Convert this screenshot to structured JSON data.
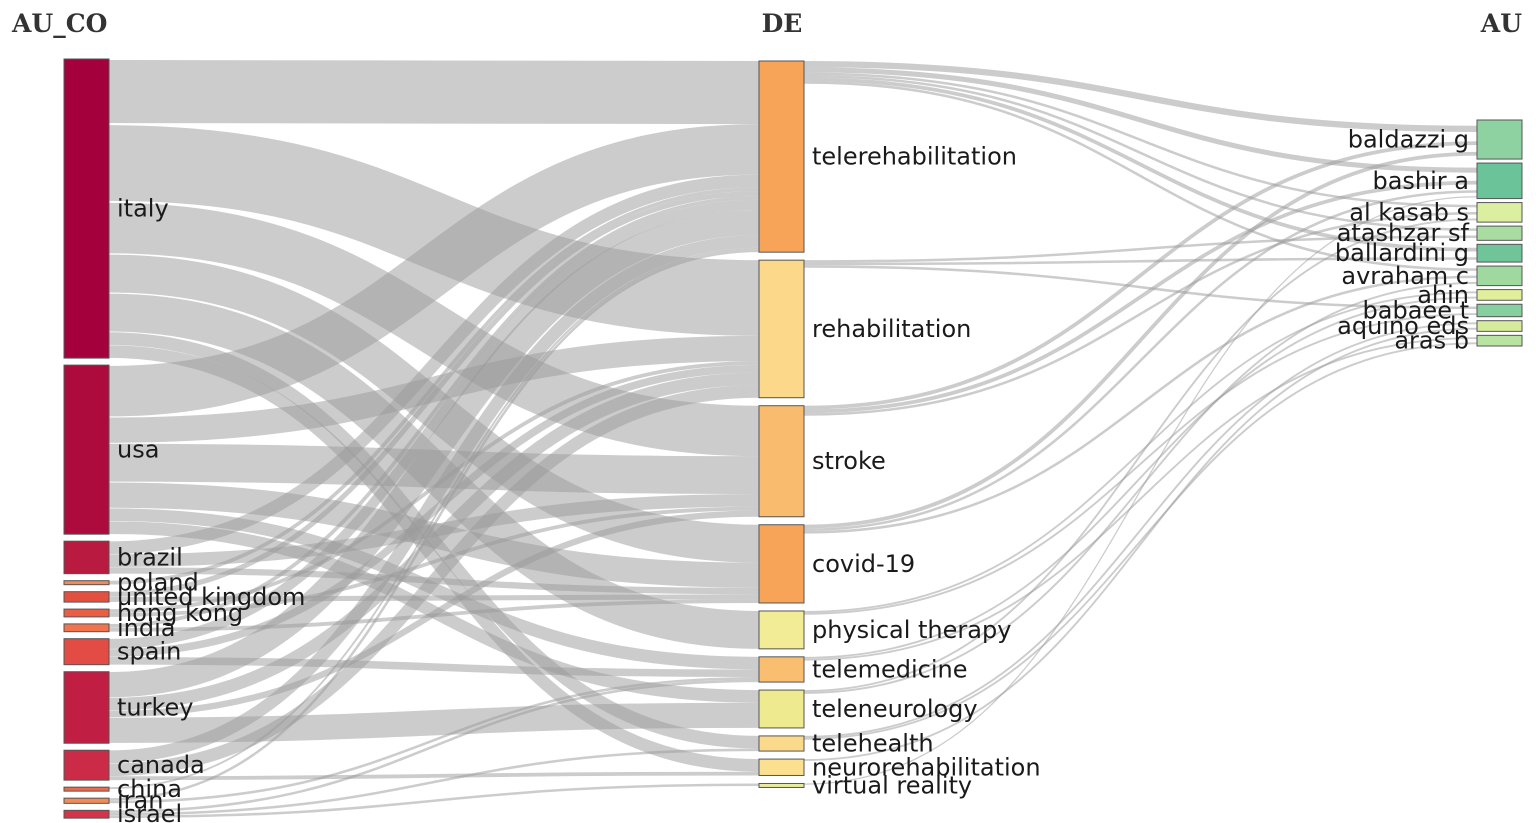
{
  "chart_data": {
    "type": "sankey",
    "columns": [
      {
        "key": "au_co",
        "header": "AU_CO"
      },
      {
        "key": "de",
        "header": "DE"
      },
      {
        "key": "au",
        "header": "AU"
      }
    ],
    "nodes": {
      "au_co": [
        {
          "id": "italy",
          "label": "italy",
          "color": "#a3003c"
        },
        {
          "id": "usa",
          "label": "usa",
          "color": "#ad0a3e"
        },
        {
          "id": "brazil",
          "label": "brazil",
          "color": "#b81a40"
        },
        {
          "id": "poland",
          "label": "poland",
          "color": "#f48a58"
        },
        {
          "id": "uk",
          "label": "united kingdom",
          "color": "#e4503f"
        },
        {
          "id": "hongkong",
          "label": "hong kong",
          "color": "#ea5e44"
        },
        {
          "id": "india",
          "label": "india",
          "color": "#f0744d"
        },
        {
          "id": "spain",
          "label": "spain",
          "color": "#e24c44"
        },
        {
          "id": "turkey",
          "label": "turkey",
          "color": "#c11e44"
        },
        {
          "id": "canada",
          "label": "canada",
          "color": "#cc2b47"
        },
        {
          "id": "china",
          "label": "china",
          "color": "#ec6a4c"
        },
        {
          "id": "iran",
          "label": "iran",
          "color": "#f28c57"
        },
        {
          "id": "israel",
          "label": "israel",
          "color": "#d43349"
        }
      ],
      "de": [
        {
          "id": "telerehab",
          "label": "telerehabilitation",
          "color": "#f7a458"
        },
        {
          "id": "rehab",
          "label": "rehabilitation",
          "color": "#fbd88a"
        },
        {
          "id": "stroke",
          "label": "stroke",
          "color": "#f9bc6e"
        },
        {
          "id": "covid",
          "label": "covid-19",
          "color": "#f7a458"
        },
        {
          "id": "physther",
          "label": "physical therapy",
          "color": "#f2ec96"
        },
        {
          "id": "telemed",
          "label": "telemedicine",
          "color": "#f9be70"
        },
        {
          "id": "teleneuro",
          "label": "teleneurology",
          "color": "#eeea90"
        },
        {
          "id": "telehealth",
          "label": "telehealth",
          "color": "#fbd98a"
        },
        {
          "id": "neurorehab",
          "label": "neurorehabilitation",
          "color": "#fbe090"
        },
        {
          "id": "vr",
          "label": "virtual reality",
          "color": "#e8eaa0"
        }
      ],
      "au": [
        {
          "id": "baldazzi",
          "label": "baldazzi g",
          "color": "#8fd2a2"
        },
        {
          "id": "bashir",
          "label": "bashir a",
          "color": "#6bc39a"
        },
        {
          "id": "alkasab",
          "label": "al kasab s",
          "color": "#dceea0"
        },
        {
          "id": "atashzar",
          "label": "atashzar sf",
          "color": "#a8dca0"
        },
        {
          "id": "ballardini",
          "label": "ballardini g",
          "color": "#70c49a"
        },
        {
          "id": "avraham",
          "label": "avraham c",
          "color": "#a0d9a0"
        },
        {
          "id": "ahin",
          "label": "ahin",
          "color": "#e2ef9a"
        },
        {
          "id": "babaee",
          "label": "babaee t",
          "color": "#86cf9e"
        },
        {
          "id": "aquino",
          "label": "aquino eds",
          "color": "#d6ec9c"
        },
        {
          "id": "aras",
          "label": "aras b",
          "color": "#b8e3a0"
        }
      ]
    },
    "links": [
      {
        "source": "italy",
        "target": "telerehab",
        "value": 5
      },
      {
        "source": "italy",
        "target": "rehab",
        "value": 6
      },
      {
        "source": "italy",
        "target": "stroke",
        "value": 4
      },
      {
        "source": "italy",
        "target": "covid",
        "value": 3
      },
      {
        "source": "italy",
        "target": "physther",
        "value": 3
      },
      {
        "source": "italy",
        "target": "telehealth",
        "value": 1
      },
      {
        "source": "italy",
        "target": "neurorehab",
        "value": 1
      },
      {
        "source": "usa",
        "target": "telerehab",
        "value": 4
      },
      {
        "source": "usa",
        "target": "rehab",
        "value": 2
      },
      {
        "source": "usa",
        "target": "stroke",
        "value": 3
      },
      {
        "source": "usa",
        "target": "covid",
        "value": 2
      },
      {
        "source": "usa",
        "target": "telemed",
        "value": 1
      },
      {
        "source": "usa",
        "target": "teleneuro",
        "value": 1
      },
      {
        "source": "brazil",
        "target": "telerehab",
        "value": 1
      },
      {
        "source": "brazil",
        "target": "stroke",
        "value": 1
      },
      {
        "source": "brazil",
        "target": "covid",
        "value": 0.5
      },
      {
        "source": "poland",
        "target": "telerehab",
        "value": 0.3
      },
      {
        "source": "uk",
        "target": "telerehab",
        "value": 0.4
      },
      {
        "source": "uk",
        "target": "covid",
        "value": 0.4
      },
      {
        "source": "hongkong",
        "target": "rehab",
        "value": 0.3
      },
      {
        "source": "hongkong",
        "target": "stroke",
        "value": 0.3
      },
      {
        "source": "india",
        "target": "telerehab",
        "value": 0.3
      },
      {
        "source": "india",
        "target": "covid",
        "value": 0.3
      },
      {
        "source": "spain",
        "target": "telerehab",
        "value": 0.8
      },
      {
        "source": "spain",
        "target": "rehab",
        "value": 0.6
      },
      {
        "source": "spain",
        "target": "telemed",
        "value": 0.6
      },
      {
        "source": "turkey",
        "target": "telerehab",
        "value": 2
      },
      {
        "source": "turkey",
        "target": "rehab",
        "value": 1
      },
      {
        "source": "turkey",
        "target": "stroke",
        "value": 0.5
      },
      {
        "source": "turkey",
        "target": "teleneuro",
        "value": 2
      },
      {
        "source": "canada",
        "target": "telerehab",
        "value": 1
      },
      {
        "source": "canada",
        "target": "rehab",
        "value": 1
      },
      {
        "source": "canada",
        "target": "neurorehab",
        "value": 0.3
      },
      {
        "source": "china",
        "target": "telerehab",
        "value": 0.15
      },
      {
        "source": "iran",
        "target": "telerehab",
        "value": 0.2
      },
      {
        "source": "iran",
        "target": "telemed",
        "value": 0.2
      },
      {
        "source": "israel",
        "target": "telemed",
        "value": 0.2
      },
      {
        "source": "israel",
        "target": "telehealth",
        "value": 0.2
      },
      {
        "source": "israel",
        "target": "vr",
        "value": 0.2
      },
      {
        "source": "telerehab",
        "target": "baldazzi",
        "value": 0.5
      },
      {
        "source": "telerehab",
        "target": "bashir",
        "value": 0.4
      },
      {
        "source": "telerehab",
        "target": "alkasab",
        "value": 0.2
      },
      {
        "source": "telerehab",
        "target": "atashzar",
        "value": 0.2
      },
      {
        "source": "telerehab",
        "target": "ballardini",
        "value": 0.3
      },
      {
        "source": "telerehab",
        "target": "avraham",
        "value": 0.2
      },
      {
        "source": "rehab",
        "target": "atashzar",
        "value": 0.2
      },
      {
        "source": "rehab",
        "target": "ballardini",
        "value": 0.2
      },
      {
        "source": "rehab",
        "target": "babaee",
        "value": 0.2
      },
      {
        "source": "stroke",
        "target": "baldazzi",
        "value": 0.3
      },
      {
        "source": "stroke",
        "target": "bashir",
        "value": 0.3
      },
      {
        "source": "stroke",
        "target": "alkasab",
        "value": 0.2
      },
      {
        "source": "covid",
        "target": "baldazzi",
        "value": 0.3
      },
      {
        "source": "covid",
        "target": "bashir",
        "value": 0.2
      },
      {
        "source": "covid",
        "target": "avraham",
        "value": 0.2
      },
      {
        "source": "physther",
        "target": "ahin",
        "value": 0.15
      },
      {
        "source": "physther",
        "target": "babaee",
        "value": 0.15
      },
      {
        "source": "telemed",
        "target": "ahin",
        "value": 0.15
      },
      {
        "source": "telemed",
        "target": "aras",
        "value": 0.15
      },
      {
        "source": "teleneuro",
        "target": "alkasab",
        "value": 0.15
      },
      {
        "source": "teleneuro",
        "target": "avraham",
        "value": 0.15
      },
      {
        "source": "telehealth",
        "target": "aquino",
        "value": 0.15
      },
      {
        "source": "telehealth",
        "target": "aras",
        "value": 0.15
      },
      {
        "source": "neurorehab",
        "target": "aquino",
        "value": 0.15
      },
      {
        "source": "vr",
        "target": "bashir",
        "value": 0.1
      }
    ]
  }
}
